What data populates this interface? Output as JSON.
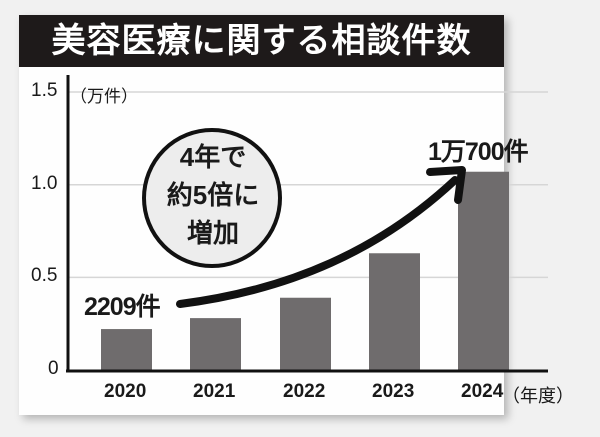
{
  "title": "美容医療に関する相談件数",
  "chart_data": {
    "type": "bar",
    "title": "美容医療に関する相談件数",
    "xlabel": "（年度）",
    "ylabel": "（万件）",
    "categories": [
      "2020",
      "2021",
      "2022",
      "2023",
      "2024"
    ],
    "values": [
      0.2209,
      0.28,
      0.39,
      0.63,
      1.07
    ],
    "ylim": [
      0,
      1.5
    ],
    "yticks": [
      "0",
      "0.5",
      "1.0",
      "1.5"
    ],
    "grid": true,
    "bar_color": "#6f6c6d",
    "annotations": {
      "first_label": "2209件",
      "last_label": "1万700件",
      "callout": [
        "4年で",
        "約5倍に",
        "増加"
      ]
    }
  },
  "axis": {
    "y_unit": "（万件）",
    "x_unit": "（年度）",
    "yticks": [
      "0",
      "0.5",
      "1.0",
      "1.5"
    ]
  }
}
